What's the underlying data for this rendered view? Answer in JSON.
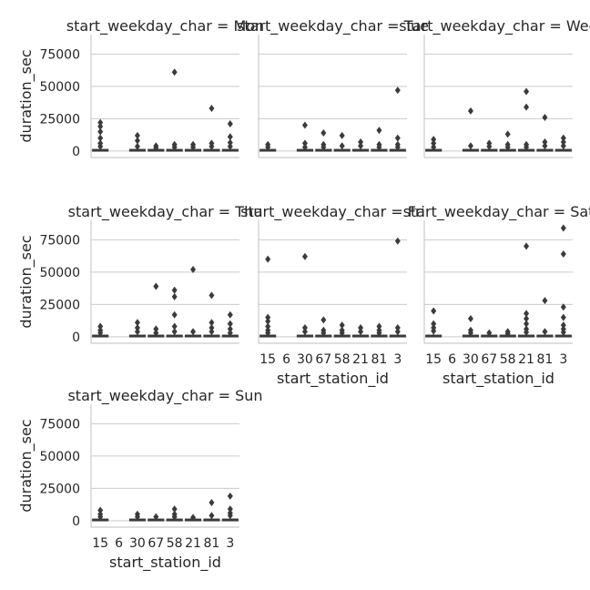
{
  "chart_data": {
    "type": "box",
    "facet_var": "start_weekday_char",
    "panel_titles": [
      "start_weekday_char = Mon",
      "start_weekday_char = Tue",
      "start_weekday_char = Wed",
      "start_weekday_char = Thu",
      "start_weekday_char = Fri",
      "start_weekday_char = Sat",
      "start_weekday_char = Sun"
    ],
    "xlabel": "start_station_id",
    "ylabel": "duration_sec",
    "categories": [
      "15",
      "6",
      "30",
      "67",
      "58",
      "21",
      "81",
      "3"
    ],
    "yticks": [
      0,
      25000,
      50000,
      75000
    ],
    "ylim": [
      -5000,
      90000
    ],
    "grid": true,
    "box_color": "#3b3b3b",
    "panels": [
      {
        "weekday": "Mon",
        "outliers": [
          [
            22000,
            19000,
            15000,
            10000,
            6000,
            3500
          ],
          [],
          [
            12000,
            8000,
            3500
          ],
          [
            4000,
            2500
          ],
          [
            61000,
            5000,
            3000
          ],
          [
            5000,
            3000
          ],
          [
            33000,
            6000,
            3500
          ],
          [
            21000,
            11000,
            6500,
            3500
          ]
        ]
      },
      {
        "weekday": "Tue",
        "outliers": [
          [
            5000,
            3000
          ],
          [],
          [
            20000,
            6000,
            3000
          ],
          [
            14000,
            5000,
            3000
          ],
          [
            12000,
            4000
          ],
          [
            7000,
            4000
          ],
          [
            16000,
            5000,
            3000
          ],
          [
            47000,
            10000,
            5000,
            3000
          ]
        ]
      },
      {
        "weekday": "Wed",
        "outliers": [
          [
            9000,
            6000,
            3000
          ],
          [],
          [
            31000,
            4000
          ],
          [
            6000,
            3500
          ],
          [
            13000,
            5000,
            3000
          ],
          [
            46000,
            34000,
            5000,
            3000
          ],
          [
            26000,
            7000,
            4000
          ],
          [
            10000,
            7000,
            4000
          ]
        ]
      },
      {
        "weekday": "Thu",
        "outliers": [
          [
            8000,
            5000,
            3000
          ],
          [],
          [
            11000,
            7000,
            4000
          ],
          [
            39000,
            6000,
            3000
          ],
          [
            36000,
            31000,
            17000,
            8000,
            4000
          ],
          [
            52000,
            4000
          ],
          [
            32000,
            11000,
            7000,
            4000
          ],
          [
            17000,
            10000,
            6000,
            3000
          ]
        ]
      },
      {
        "weekday": "Fri",
        "outliers": [
          [
            60000,
            15000,
            12000,
            8000,
            5000,
            3000
          ],
          [],
          [
            62000,
            7000,
            4000
          ],
          [
            13000,
            5000,
            3000
          ],
          [
            9000,
            5000,
            3000
          ],
          [
            7000,
            4000
          ],
          [
            8000,
            5000,
            3000
          ],
          [
            74000,
            7000,
            4000
          ]
        ]
      },
      {
        "weekday": "Sat",
        "outliers": [
          [
            20000,
            10000,
            7000,
            4500
          ],
          [],
          [
            14000,
            5000,
            3000
          ],
          [
            3000
          ],
          [
            4000,
            2500
          ],
          [
            70000,
            18000,
            14000,
            10000,
            6000,
            3500
          ],
          [
            28000,
            4000
          ],
          [
            84000,
            64000,
            23000,
            15000,
            9000,
            6000,
            3500
          ]
        ]
      },
      {
        "weekday": "Sun",
        "outliers": [
          [
            8000,
            5000,
            3000
          ],
          [],
          [
            5000,
            3000
          ],
          [
            3000
          ],
          [
            9000,
            5000,
            3000
          ],
          [
            2500
          ],
          [
            14000,
            4000
          ],
          [
            19000,
            9000,
            6000,
            4000
          ]
        ]
      }
    ]
  }
}
